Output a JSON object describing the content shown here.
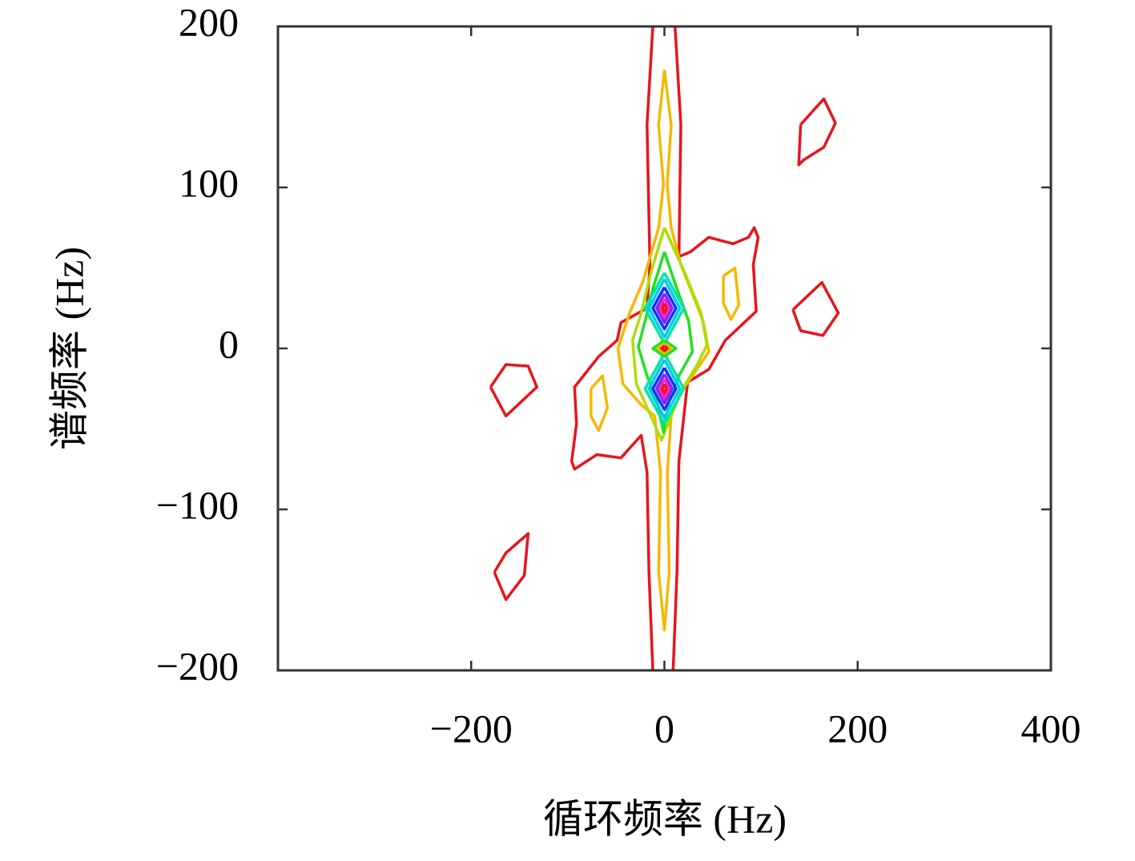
{
  "chart_data": {
    "type": "contour",
    "xlabel": "循环频率 (Hz)",
    "ylabel": "谱频率 (Hz)",
    "xlim": [
      -400,
      400
    ],
    "ylim": [
      -200,
      200
    ],
    "xticks": [
      {
        "value": -200,
        "label": "−200"
      },
      0,
      200,
      400
    ],
    "yticks": [
      {
        "value": -200,
        "label": "−200"
      },
      {
        "value": -100,
        "label": "−100"
      },
      0,
      100,
      200
    ],
    "series": [
      {
        "color": "#e8141c",
        "x": [
          -12,
          -18,
          -15,
          -18,
          -45,
          -49,
          -68,
          -93,
          -91,
          -96,
          -93,
          -70,
          -45,
          -24,
          -18,
          -16,
          -12
        ],
        "y": [
          200,
          139,
          52,
          25,
          16,
          5,
          -5,
          -24,
          -47,
          -70,
          -75,
          -66,
          -68,
          -54,
          -77,
          -139,
          -200
        ]
      },
      {
        "color": "#e8141c",
        "x": [
          11,
          17,
          15,
          27,
          46,
          71,
          87,
          93,
          97,
          92,
          95,
          63,
          46,
          24,
          15,
          13,
          9
        ],
        "y": [
          200,
          139,
          57,
          60,
          69,
          65,
          69,
          75,
          69,
          52,
          23,
          5,
          -13,
          -21,
          -70,
          -139,
          -200
        ]
      },
      {
        "color": "#e8141c",
        "x": [
          141,
          165,
          177,
          165,
          144,
          139,
          141
        ],
        "y": [
          139,
          155,
          140,
          125,
          117,
          114,
          139
        ]
      },
      {
        "color": "#e8141c",
        "x": [
          133,
          163,
          180,
          164,
          141,
          133
        ],
        "y": [
          24,
          41,
          22,
          8,
          11,
          24
        ]
      },
      {
        "color": "#e8141c",
        "x": [
          -180,
          -164,
          -141,
          -132,
          -164,
          -180
        ],
        "y": [
          -24,
          -10,
          -11,
          -24,
          -42,
          -24
        ]
      },
      {
        "color": "#e8141c",
        "x": [
          -176,
          -164,
          -141,
          -145,
          -164,
          -176
        ],
        "y": [
          -139,
          -127,
          -115,
          -141,
          -156,
          -139
        ]
      },
      {
        "color": "#f5b800",
        "x": [
          0,
          -6,
          -1,
          -6,
          -22,
          -36,
          -48,
          -43,
          -24,
          -10,
          -4,
          -6,
          0,
          5,
          3,
          7,
          17,
          29,
          46,
          40,
          17,
          7,
          3,
          7,
          0
        ],
        "y": [
          173,
          139,
          102,
          75,
          42,
          22,
          0,
          -22,
          -35,
          -42,
          -77,
          -139,
          -175,
          -139,
          -77,
          -42,
          -27,
          -17,
          -2,
          17,
          52,
          75,
          102,
          139,
          173
        ]
      },
      {
        "color": "#f5b800",
        "x": [
          61,
          73,
          77,
          69,
          61,
          61
        ],
        "y": [
          45,
          50,
          27,
          18,
          28,
          45
        ]
      },
      {
        "color": "#f5b800",
        "x": [
          -76,
          -64,
          -59,
          -68,
          -76,
          -76
        ],
        "y": [
          -25,
          -17,
          -37,
          -51,
          -42,
          -25
        ]
      },
      {
        "color": "#a8e000",
        "x": [
          0,
          -14,
          -24,
          -33,
          -29,
          -14,
          -3,
          7,
          17,
          34,
          44,
          38,
          21,
          0
        ],
        "y": [
          75,
          47,
          22,
          5,
          -22,
          -42,
          -57,
          -42,
          -27,
          -10,
          2,
          22,
          47,
          75
        ]
      },
      {
        "color": "#20e020",
        "x": [
          0,
          -12,
          -20,
          -27,
          -18,
          -8,
          -1,
          5,
          15,
          29,
          25,
          13,
          0
        ],
        "y": [
          60,
          37,
          17,
          1,
          -17,
          -32,
          -52,
          -32,
          -17,
          -2,
          17,
          37,
          60
        ]
      },
      {
        "color": "#00e6a0",
        "x": [
          0,
          20,
          0,
          -20,
          0
        ],
        "y": [
          47,
          25,
          3,
          25,
          47
        ]
      },
      {
        "color": "#00c8ff",
        "x": [
          0,
          16,
          0,
          -16,
          0
        ],
        "y": [
          43,
          25,
          7,
          25,
          43
        ]
      },
      {
        "color": "#1030ff",
        "x": [
          0,
          12,
          0,
          -12,
          0
        ],
        "y": [
          38,
          25,
          12,
          25,
          38
        ]
      },
      {
        "color": "#8020ff",
        "x": [
          0,
          8,
          0,
          -8,
          0
        ],
        "y": [
          34,
          25,
          16,
          25,
          34
        ]
      },
      {
        "color": "#ff20c0",
        "x": [
          0,
          5,
          0,
          -5,
          0
        ],
        "y": [
          31,
          25,
          19,
          25,
          31
        ]
      },
      {
        "color": "#e8141c",
        "x": [
          0,
          2,
          0,
          -2,
          0
        ],
        "y": [
          28,
          25,
          22,
          25,
          28
        ]
      },
      {
        "color": "#00e6a0",
        "x": [
          0,
          20,
          0,
          -20,
          0
        ],
        "y": [
          -3,
          -25,
          -47,
          -25,
          -3
        ]
      },
      {
        "color": "#00c8ff",
        "x": [
          0,
          16,
          0,
          -16,
          0
        ],
        "y": [
          -7,
          -25,
          -43,
          -25,
          -7
        ]
      },
      {
        "color": "#1030ff",
        "x": [
          0,
          12,
          0,
          -12,
          0
        ],
        "y": [
          -12,
          -25,
          -38,
          -25,
          -12
        ]
      },
      {
        "color": "#8020ff",
        "x": [
          0,
          8,
          0,
          -8,
          0
        ],
        "y": [
          -16,
          -25,
          -34,
          -25,
          -16
        ]
      },
      {
        "color": "#ff20c0",
        "x": [
          0,
          5,
          0,
          -5,
          0
        ],
        "y": [
          -19,
          -25,
          -31,
          -25,
          -19
        ]
      },
      {
        "color": "#e8141c",
        "x": [
          0,
          2,
          0,
          -2,
          0
        ],
        "y": [
          -22,
          -25,
          -28,
          -25,
          -22
        ]
      },
      {
        "color": "#20e020",
        "x": [
          0,
          12,
          0,
          -12,
          0
        ],
        "y": [
          5,
          0,
          -5,
          0,
          5
        ]
      },
      {
        "color": "#f5b800",
        "x": [
          0,
          7,
          0,
          -7,
          0
        ],
        "y": [
          3,
          0,
          -3,
          0,
          3
        ]
      },
      {
        "color": "#e8141c",
        "x": [
          0,
          3,
          0,
          -3,
          0
        ],
        "y": [
          1.5,
          0,
          -1.5,
          0,
          1.5
        ]
      }
    ]
  }
}
